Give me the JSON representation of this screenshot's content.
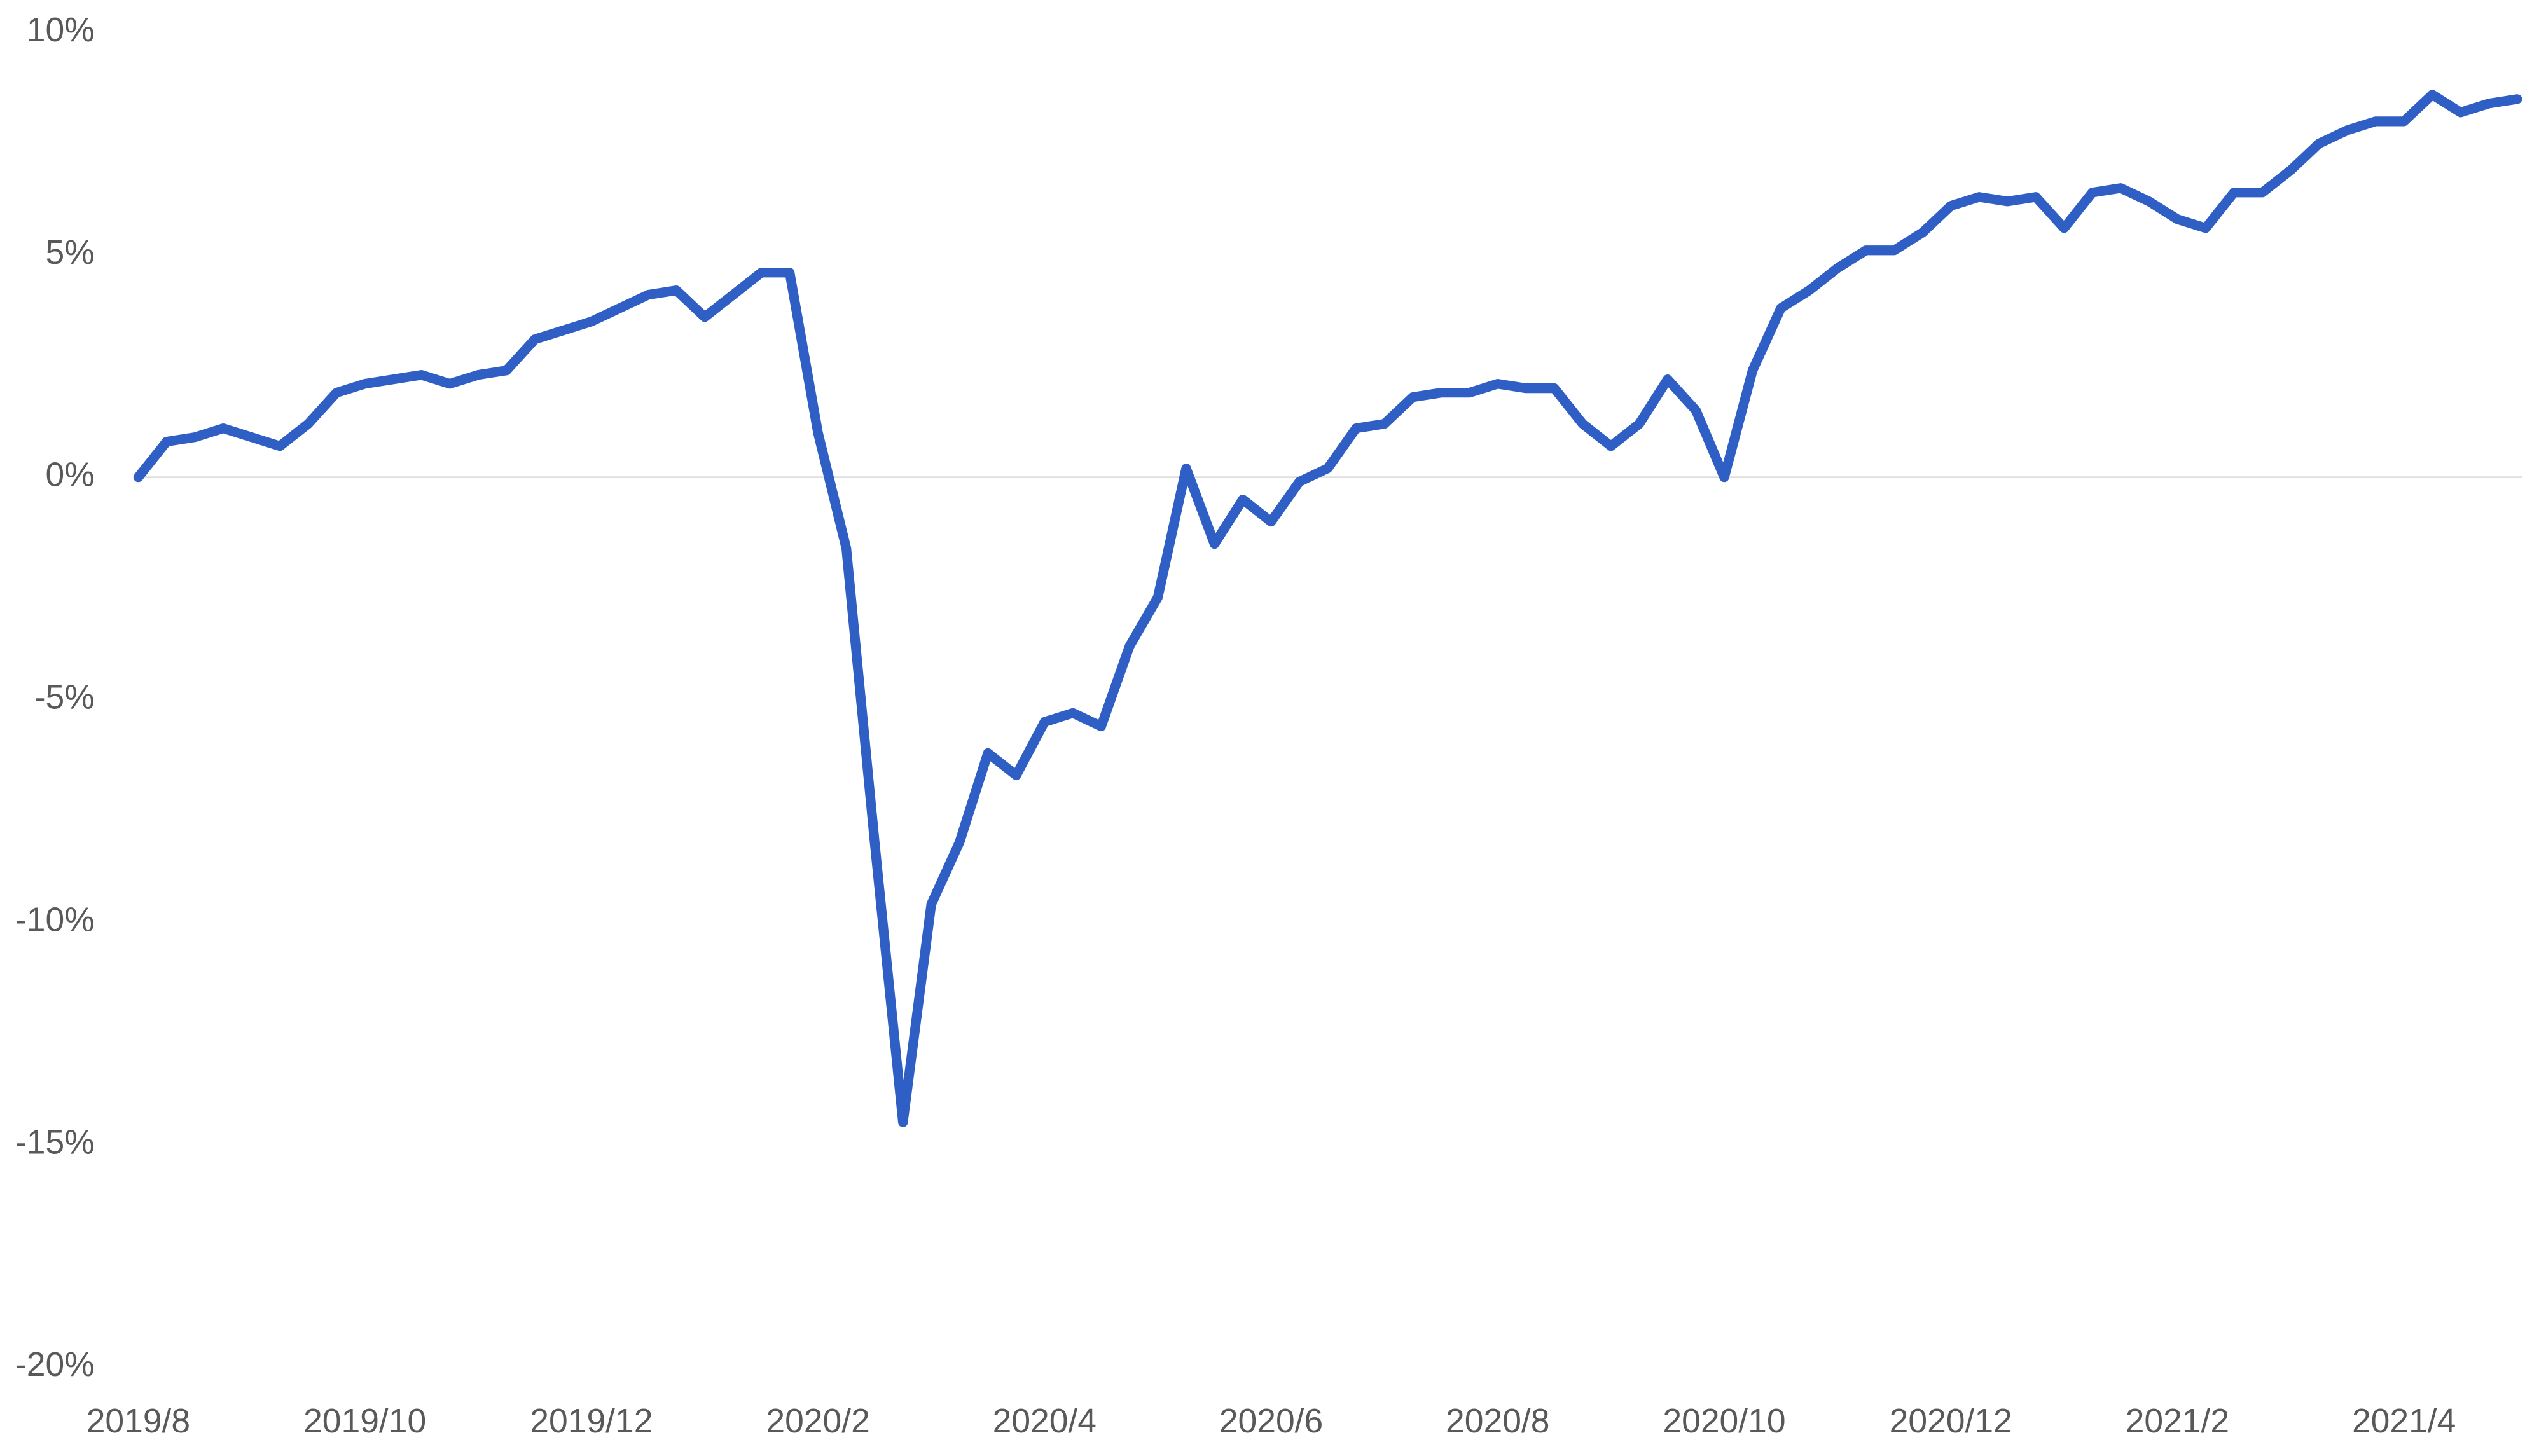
{
  "chart_data": {
    "type": "line",
    "categories": [
      "2019/8",
      null,
      null,
      null,
      null,
      null,
      null,
      null,
      "2019/10",
      null,
      null,
      null,
      null,
      null,
      null,
      null,
      "2019/12",
      null,
      null,
      null,
      null,
      null,
      null,
      null,
      "2020/2",
      null,
      null,
      null,
      null,
      null,
      null,
      null,
      "2020/4",
      null,
      null,
      null,
      null,
      null,
      null,
      null,
      "2020/6",
      null,
      null,
      null,
      null,
      null,
      null,
      null,
      "2020/8",
      null,
      null,
      null,
      null,
      null,
      null,
      null,
      "2020/10",
      null,
      null,
      null,
      null,
      null,
      null,
      null,
      "2020/12",
      null,
      null,
      null,
      null,
      null,
      null,
      null,
      "2021/2",
      null,
      null,
      null,
      null,
      null,
      null,
      null,
      "2021/4",
      null,
      null,
      null,
      null
    ],
    "series": [
      {
        "color": "#2f5fc4",
        "values": [
          0,
          0.8,
          0.9,
          1.1,
          0.9,
          0.7,
          1.2,
          1.9,
          2.1,
          2.2,
          2.3,
          2.1,
          2.3,
          2.4,
          3.1,
          3.3,
          3.5,
          3.8,
          4.1,
          4.2,
          3.6,
          4.1,
          4.6,
          4.6,
          1.0,
          -1.6,
          -8.2,
          -14.5,
          -9.6,
          -8.2,
          -6.2,
          -6.7,
          -5.5,
          -5.3,
          -5.6,
          -3.8,
          -2.7,
          0.2,
          -1.5,
          -0.5,
          -1.0,
          -0.1,
          0.2,
          1.1,
          1.2,
          1.8,
          1.9,
          1.9,
          2.1,
          2.0,
          2.0,
          1.2,
          0.7,
          1.2,
          2.2,
          1.5,
          0.0,
          2.4,
          3.8,
          4.2,
          4.7,
          5.1,
          5.1,
          5.5,
          6.1,
          6.3,
          6.2,
          6.3,
          5.6,
          6.4,
          6.5,
          6.2,
          5.8,
          5.6,
          6.4,
          6.4,
          6.9,
          7.5,
          7.8,
          8.0,
          8.0,
          8.6,
          8.2,
          8.4,
          8.5
        ]
      }
    ],
    "ylim": [
      -20,
      10
    ],
    "yticks": [
      {
        "value": -20,
        "label": "-20%"
      },
      {
        "value": -15,
        "label": "-15%"
      },
      {
        "value": -10,
        "label": "-10%"
      },
      {
        "value": -5,
        "label": "-5%"
      },
      {
        "value": 0,
        "label": "0%"
      },
      {
        "value": 5,
        "label": "5%"
      },
      {
        "value": 10,
        "label": "10%"
      }
    ]
  }
}
